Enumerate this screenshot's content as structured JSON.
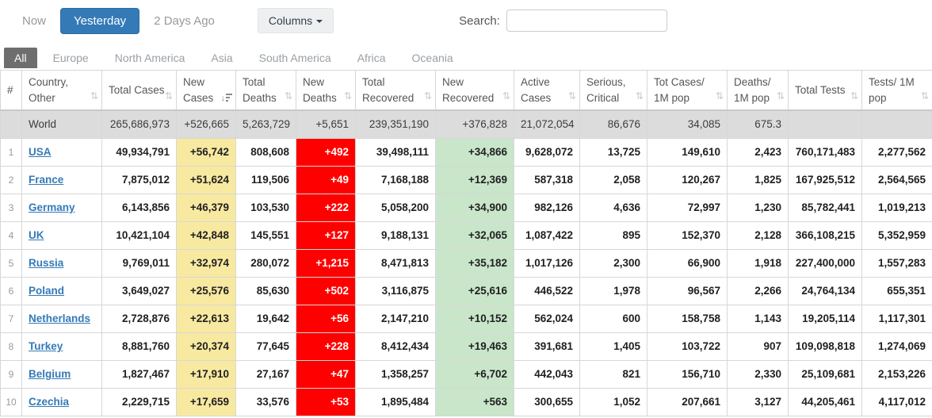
{
  "toolbar": {
    "now_label": "Now",
    "yesterday_label": "Yesterday",
    "two_days_label": "2 Days Ago",
    "columns_label": "Columns",
    "search_label": "Search:",
    "search_value": ""
  },
  "colors": {
    "accent_blue": "#337ab7",
    "active_tab_gray": "#6e6e6e",
    "new_cases_yellow": "#f8e9a1",
    "new_deaths_red": "#ff0000",
    "new_recovered_green": "#c9e6ca",
    "world_row_gray": "#dcdcdc"
  },
  "tabs": [
    {
      "label": "All",
      "active": true
    },
    {
      "label": "Europe",
      "active": false
    },
    {
      "label": "North America",
      "active": false
    },
    {
      "label": "Asia",
      "active": false
    },
    {
      "label": "South America",
      "active": false
    },
    {
      "label": "Africa",
      "active": false
    },
    {
      "label": "Oceania",
      "active": false
    }
  ],
  "table": {
    "headers": [
      {
        "label": "#",
        "sort": "none"
      },
      {
        "label": "Country, Other",
        "sort": "both"
      },
      {
        "label": "Total Cases",
        "sort": "both"
      },
      {
        "label": "New Cases",
        "sort": "desc"
      },
      {
        "label": "Total Deaths",
        "sort": "both"
      },
      {
        "label": "New Deaths",
        "sort": "both"
      },
      {
        "label": "Total Recovered",
        "sort": "both"
      },
      {
        "label": "New Recovered",
        "sort": "both"
      },
      {
        "label": "Active Cases",
        "sort": "both"
      },
      {
        "label": "Serious, Critical",
        "sort": "both"
      },
      {
        "label": "Tot Cases/ 1M pop",
        "sort": "both"
      },
      {
        "label": "Deaths/ 1M pop",
        "sort": "both"
      },
      {
        "label": "Total Tests",
        "sort": "both"
      },
      {
        "label": "Tests/ 1M pop",
        "sort": "both"
      }
    ],
    "world": {
      "label": "World",
      "cells": [
        "265,686,973",
        "+526,665",
        "5,263,729",
        "+5,651",
        "239,351,190",
        "+376,828",
        "21,072,054",
        "86,676",
        "34,085",
        "675.3",
        "",
        ""
      ]
    },
    "rows": [
      {
        "num": "1",
        "country": "USA",
        "cells": [
          "49,934,791",
          "+56,742",
          "808,608",
          "+492",
          "39,498,111",
          "+34,866",
          "9,628,072",
          "13,725",
          "149,610",
          "2,423",
          "760,171,483",
          "2,277,562"
        ]
      },
      {
        "num": "2",
        "country": "France",
        "cells": [
          "7,875,012",
          "+51,624",
          "119,506",
          "+49",
          "7,168,188",
          "+12,369",
          "587,318",
          "2,058",
          "120,267",
          "1,825",
          "167,925,512",
          "2,564,565"
        ]
      },
      {
        "num": "3",
        "country": "Germany",
        "cells": [
          "6,143,856",
          "+46,379",
          "103,530",
          "+222",
          "5,058,200",
          "+34,900",
          "982,126",
          "4,636",
          "72,997",
          "1,230",
          "85,782,441",
          "1,019,213"
        ]
      },
      {
        "num": "4",
        "country": "UK",
        "cells": [
          "10,421,104",
          "+42,848",
          "145,551",
          "+127",
          "9,188,131",
          "+32,065",
          "1,087,422",
          "895",
          "152,370",
          "2,128",
          "366,108,215",
          "5,352,959"
        ]
      },
      {
        "num": "5",
        "country": "Russia",
        "cells": [
          "9,769,011",
          "+32,974",
          "280,072",
          "+1,215",
          "8,471,813",
          "+35,182",
          "1,017,126",
          "2,300",
          "66,900",
          "1,918",
          "227,400,000",
          "1,557,283"
        ]
      },
      {
        "num": "6",
        "country": "Poland",
        "cells": [
          "3,649,027",
          "+25,576",
          "85,630",
          "+502",
          "3,116,875",
          "+25,616",
          "446,522",
          "1,978",
          "96,567",
          "2,266",
          "24,764,134",
          "655,351"
        ]
      },
      {
        "num": "7",
        "country": "Netherlands",
        "cells": [
          "2,728,876",
          "+22,613",
          "19,642",
          "+56",
          "2,147,210",
          "+10,152",
          "562,024",
          "600",
          "158,758",
          "1,143",
          "19,205,114",
          "1,117,301"
        ]
      },
      {
        "num": "8",
        "country": "Turkey",
        "cells": [
          "8,881,760",
          "+20,374",
          "77,645",
          "+228",
          "8,412,434",
          "+19,463",
          "391,681",
          "1,405",
          "103,722",
          "907",
          "109,098,818",
          "1,274,069"
        ]
      },
      {
        "num": "9",
        "country": "Belgium",
        "cells": [
          "1,827,467",
          "+17,910",
          "27,167",
          "+47",
          "1,358,257",
          "+6,702",
          "442,043",
          "821",
          "156,710",
          "2,330",
          "25,109,681",
          "2,153,226"
        ]
      },
      {
        "num": "10",
        "country": "Czechia",
        "cells": [
          "2,229,715",
          "+17,659",
          "33,576",
          "+53",
          "1,895,484",
          "+563",
          "300,655",
          "1,052",
          "207,661",
          "3,127",
          "44,205,461",
          "4,117,012"
        ]
      }
    ]
  }
}
